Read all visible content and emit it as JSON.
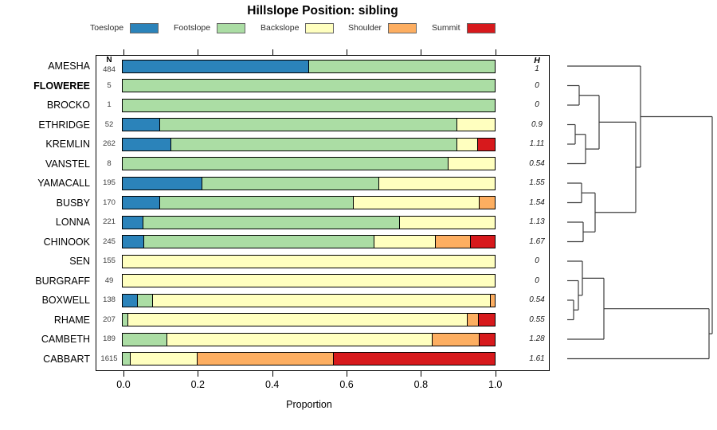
{
  "columns": {
    "n": "N",
    "h": "H"
  },
  "chart_data": {
    "type": "bar",
    "subtype": "stacked-horizontal-proportion",
    "title": "Hillslope Position: sibling",
    "xlabel": "Proportion",
    "xlim": [
      0,
      1
    ],
    "x_ticks": [
      "0.0",
      "0.2",
      "0.4",
      "0.6",
      "0.8",
      "1.0"
    ],
    "legend_position": "top",
    "grid": false,
    "series": [
      {
        "name": "Toeslope",
        "color": "#2B83BA"
      },
      {
        "name": "Footslope",
        "color": "#ABDDA4"
      },
      {
        "name": "Backslope",
        "color": "#FFFFBF"
      },
      {
        "name": "Shoulder",
        "color": "#FDAE61"
      },
      {
        "name": "Summit",
        "color": "#D7191C"
      }
    ],
    "rows": [
      {
        "name": "AMESHA",
        "n": 484,
        "h": "1",
        "bold": false,
        "proportions": [
          0.5,
          0.5,
          0,
          0,
          0
        ]
      },
      {
        "name": "FLOWEREE",
        "n": 5,
        "h": "0",
        "bold": true,
        "proportions": [
          0,
          1,
          0,
          0,
          0
        ]
      },
      {
        "name": "BROCKO",
        "n": 1,
        "h": "0",
        "bold": false,
        "proportions": [
          0,
          1,
          0,
          0,
          0
        ]
      },
      {
        "name": "ETHRIDGE",
        "n": 52,
        "h": "0.9",
        "bold": false,
        "proportions": [
          0.1,
          0.8,
          0.1,
          0,
          0
        ]
      },
      {
        "name": "KREMLIN",
        "n": 262,
        "h": "1.11",
        "bold": false,
        "proportions": [
          0.13,
          0.77,
          0.055,
          0,
          0.045
        ]
      },
      {
        "name": "VANSTEL",
        "n": 8,
        "h": "0.54",
        "bold": false,
        "proportions": [
          0,
          0.875,
          0.125,
          0,
          0
        ]
      },
      {
        "name": "YAMACALL",
        "n": 195,
        "h": "1.55",
        "bold": false,
        "proportions": [
          0.215,
          0.475,
          0.31,
          0,
          0
        ]
      },
      {
        "name": "BUSBY",
        "n": 170,
        "h": "1.54",
        "bold": false,
        "proportions": [
          0.1,
          0.52,
          0.34,
          0.04,
          0
        ]
      },
      {
        "name": "LONNA",
        "n": 221,
        "h": "1.13",
        "bold": false,
        "proportions": [
          0.055,
          0.69,
          0.255,
          0,
          0
        ]
      },
      {
        "name": "CHINOOK",
        "n": 245,
        "h": "1.67",
        "bold": false,
        "proportions": [
          0.057,
          0.62,
          0.165,
          0.093,
          0.065
        ]
      },
      {
        "name": "SEN",
        "n": 155,
        "h": "0",
        "bold": false,
        "proportions": [
          0,
          0,
          1,
          0,
          0
        ]
      },
      {
        "name": "BURGRAFF",
        "n": 49,
        "h": "0",
        "bold": false,
        "proportions": [
          0,
          0,
          1,
          0,
          0
        ]
      },
      {
        "name": "BOXWELL",
        "n": 138,
        "h": "0.54",
        "bold": false,
        "proportions": [
          0.041,
          0.04,
          0.909,
          0.01,
          0
        ]
      },
      {
        "name": "RHAME",
        "n": 207,
        "h": "0.55",
        "bold": false,
        "proportions": [
          0,
          0.016,
          0.912,
          0.029,
          0.043
        ]
      },
      {
        "name": "CAMBETH",
        "n": 189,
        "h": "1.28",
        "bold": false,
        "proportions": [
          0,
          0.12,
          0.712,
          0.127,
          0.041
        ]
      },
      {
        "name": "CABBART",
        "n": 1615,
        "h": "1.61",
        "bold": false,
        "proportions": [
          0,
          0.021,
          0.18,
          0.366,
          0.433
        ]
      }
    ],
    "dendrogram": {
      "present": true,
      "line_color": "#3c3c3c",
      "segments": [
        [
          712,
          83,
          804,
          83
        ],
        [
          712,
          107.5,
          727,
          107.5
        ],
        [
          712,
          132,
          727,
          132
        ],
        [
          727,
          107.5,
          727,
          132
        ],
        [
          727,
          119.75,
          752,
          119.75
        ],
        [
          712,
          156.5,
          722,
          156.5
        ],
        [
          712,
          181,
          722,
          181
        ],
        [
          722,
          156.5,
          722,
          181
        ],
        [
          722,
          168.75,
          735,
          168.75
        ],
        [
          712,
          205.5,
          735,
          205.5
        ],
        [
          735,
          168.75,
          735,
          205.5
        ],
        [
          735,
          187.1,
          752,
          187.1
        ],
        [
          752,
          119.75,
          752,
          187.1
        ],
        [
          752,
          153.4,
          798,
          153.4
        ],
        [
          712,
          230,
          730,
          230
        ],
        [
          712,
          254.5,
          730,
          254.5
        ],
        [
          730,
          230,
          730,
          254.5
        ],
        [
          730,
          242.25,
          747,
          242.25
        ],
        [
          712,
          279,
          732,
          279
        ],
        [
          712,
          303.5,
          732,
          303.5
        ],
        [
          732,
          279,
          732,
          303.5
        ],
        [
          732,
          291.25,
          747,
          291.25
        ],
        [
          747,
          242.25,
          747,
          291.25
        ],
        [
          747,
          266.75,
          798,
          266.75
        ],
        [
          798,
          153.4,
          798,
          266.75
        ],
        [
          798,
          210,
          804,
          210
        ],
        [
          804,
          83,
          804,
          210
        ],
        [
          804,
          146.5,
          894,
          146.5
        ],
        [
          712,
          328,
          731,
          328
        ],
        [
          712,
          352.5,
          726,
          352.5
        ],
        [
          712,
          377,
          720,
          377
        ],
        [
          712,
          401.5,
          720,
          401.5
        ],
        [
          720,
          377,
          720,
          401.5
        ],
        [
          720,
          389.25,
          726,
          389.25
        ],
        [
          726,
          352.5,
          726,
          389.25
        ],
        [
          726,
          370.9,
          731,
          370.9
        ],
        [
          731,
          328,
          731,
          370.9
        ],
        [
          731,
          349.4,
          758,
          349.4
        ],
        [
          712,
          426,
          758,
          426
        ],
        [
          758,
          349.4,
          758,
          426
        ],
        [
          758,
          387.7,
          890,
          387.7
        ],
        [
          712,
          450.5,
          890,
          450.5
        ],
        [
          890,
          387.7,
          890,
          450.5
        ],
        [
          890,
          419.1,
          894,
          419.1
        ],
        [
          894,
          146.5,
          894,
          419.1
        ]
      ]
    }
  }
}
